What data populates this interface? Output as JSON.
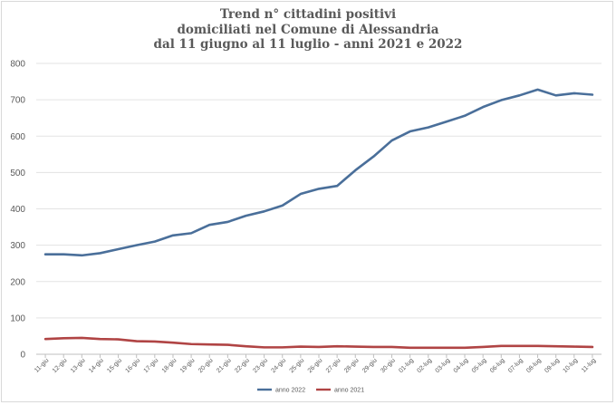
{
  "chart_data": {
    "type": "line",
    "title_lines": [
      "Trend n° cittadini positivi",
      "domiciliati nel Comune di Alessandria",
      "dal 11 giugno al 11 luglio - anni 2021 e 2022"
    ],
    "xlabel": "",
    "ylabel": "",
    "ylim": [
      0,
      800
    ],
    "yticks": [
      0,
      100,
      200,
      300,
      400,
      500,
      600,
      700,
      800
    ],
    "grid": true,
    "legend_position": "bottom",
    "categories": [
      "11-giu",
      "12-giu",
      "13-giu",
      "14-giu",
      "15-giu",
      "16-giu",
      "17-giu",
      "18-giu",
      "19-giu",
      "20-giu",
      "21-giu",
      "22-giu",
      "23-giu",
      "24-giu",
      "25-giu",
      "26-giu",
      "27-giu",
      "28-giu",
      "29-giu",
      "30-giu",
      "01-lug",
      "02-lug",
      "03-lug",
      "04-lug",
      "05-lug",
      "06-lug",
      "07-lug",
      "08-lug",
      "09-lug",
      "10-lug",
      "11-lug"
    ],
    "series": [
      {
        "name": "anno 2022",
        "color": "#4a6f9a",
        "values": [
          275,
          275,
          272,
          278,
          289,
          300,
          310,
          327,
          333,
          356,
          364,
          381,
          393,
          409,
          441,
          455,
          463,
          506,
          544,
          588,
          613,
          624,
          640,
          656,
          680,
          699,
          712,
          728,
          712,
          718,
          714
        ]
      },
      {
        "name": "anno 2021",
        "color": "#b04444",
        "values": [
          42,
          44,
          45,
          42,
          41,
          36,
          35,
          32,
          28,
          27,
          26,
          22,
          19,
          19,
          21,
          20,
          22,
          21,
          20,
          20,
          18,
          18,
          18,
          18,
          20,
          23,
          23,
          23,
          22,
          21,
          20
        ]
      }
    ]
  }
}
